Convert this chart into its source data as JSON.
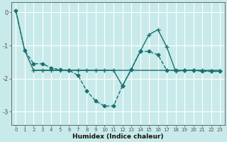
{
  "xlabel": "Humidex (Indice chaleur)",
  "background_color": "#c8eaea",
  "grid_color": "#ffffff",
  "line_color": "#1a7070",
  "xlim": [
    -0.5,
    23.5
  ],
  "ylim": [
    -3.4,
    0.3
  ],
  "xticks": [
    0,
    1,
    2,
    3,
    4,
    5,
    6,
    7,
    8,
    9,
    10,
    11,
    12,
    13,
    14,
    15,
    16,
    17,
    18,
    19,
    20,
    21,
    22,
    23
  ],
  "yticks": [
    0,
    -1,
    -2,
    -3
  ],
  "series_flat": {
    "x": [
      0,
      1,
      2,
      3,
      4,
      5,
      6,
      7,
      8,
      9,
      10,
      11,
      12,
      13,
      14,
      15,
      16,
      17,
      18,
      19,
      20,
      21,
      22,
      23
    ],
    "y": [
      0.05,
      -1.15,
      -1.75,
      -1.75,
      -1.75,
      -1.75,
      -1.75,
      -1.75,
      -1.75,
      -1.75,
      -1.75,
      -1.75,
      -1.75,
      -1.75,
      -1.75,
      -1.75,
      -1.75,
      -1.75,
      -1.75,
      -1.75,
      -1.75,
      -1.75,
      -1.75,
      -1.75
    ]
  },
  "series_dashed": {
    "x": [
      0,
      1,
      2,
      3,
      4,
      5,
      6,
      7,
      8,
      9,
      10,
      11,
      12,
      13,
      14,
      15,
      16,
      17,
      18,
      19,
      20,
      21,
      22,
      23
    ],
    "y": [
      0.05,
      -1.15,
      -1.55,
      -1.55,
      -1.68,
      -1.73,
      -1.75,
      -1.9,
      -2.38,
      -2.68,
      -2.83,
      -2.83,
      -2.22,
      -1.72,
      -1.18,
      -1.18,
      -1.28,
      -1.75,
      -1.75,
      -1.75,
      -1.75,
      -1.78,
      -1.78,
      -1.78
    ]
  },
  "series_plus": {
    "x": [
      2,
      3,
      4,
      5,
      6,
      7,
      8,
      9,
      10,
      11,
      12,
      13,
      14,
      15,
      16,
      17,
      18,
      19,
      20,
      21,
      22,
      23
    ],
    "y": [
      -1.75,
      -1.75,
      -1.75,
      -1.75,
      -1.75,
      -1.75,
      -1.75,
      -1.75,
      -1.75,
      -1.75,
      -2.22,
      -1.72,
      -1.18,
      -0.67,
      -0.52,
      -1.05,
      -1.78,
      -1.75,
      -1.75,
      -1.75,
      -1.78,
      -1.78
    ]
  }
}
